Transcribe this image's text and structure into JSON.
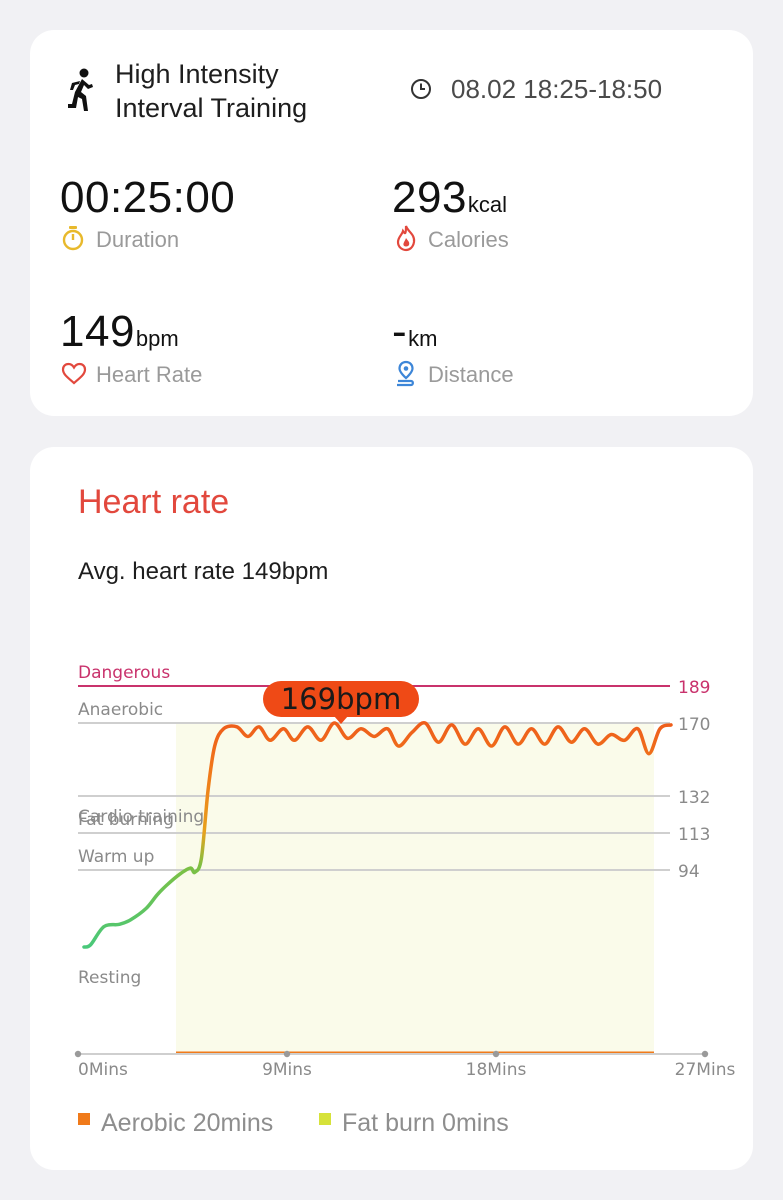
{
  "workout": {
    "title_line1": "High Intensity",
    "title_line2": "Interval Training",
    "time_range": "08.02 18:25-18:50"
  },
  "stats": {
    "duration": {
      "value": "00:25:00",
      "label": "Duration"
    },
    "calories": {
      "value": "293",
      "unit": "kcal",
      "label": "Calories"
    },
    "heart_rate": {
      "value": "149",
      "unit": "bpm",
      "label": "Heart Rate"
    },
    "distance": {
      "value": "-",
      "unit": "km",
      "label": "Distance"
    }
  },
  "heart_rate_card": {
    "title": "Heart rate",
    "average": "Avg. heart rate 149bpm",
    "tooltip": "169bpm",
    "legend": [
      {
        "label": "Aerobic 20mins",
        "color": "#f07a1a"
      },
      {
        "label": "Fat burn 0mins",
        "color": "#d6e23a"
      }
    ]
  },
  "chart_data": {
    "type": "line",
    "x_ticks": [
      "0Mins",
      "9Mins",
      "18Mins",
      "27Mins"
    ],
    "xlim": [
      0,
      27
    ],
    "zones": [
      {
        "name": "Dangerous",
        "lower": 189
      },
      {
        "name": "Anaerobic",
        "lower": 170
      },
      {
        "name": "Cardio training",
        "lower": 132
      },
      {
        "name": "Fat burning",
        "lower": 113
      },
      {
        "name": "Warm up",
        "lower": 94
      },
      {
        "name": "Resting",
        "lower": null
      }
    ],
    "y_ticks": [
      "189",
      "170",
      "132",
      "113",
      "94"
    ],
    "tooltip_value": 169,
    "series": [
      {
        "x": [
          0,
          0.3,
          0.9,
          1.6,
          2.1,
          2.8,
          3.3,
          3.7,
          4.3,
          4.8,
          5.0,
          5.3,
          5.6,
          5.9,
          6.3,
          6.9,
          7.4,
          7.9,
          8.4,
          9.0,
          9.5,
          10.1,
          10.7,
          11.3,
          11.9,
          12.5,
          13.1,
          13.7,
          14.2,
          14.8,
          15.4,
          16.0,
          16.6,
          17.2,
          17.8,
          18.4,
          19.0,
          19.6,
          20.2,
          20.8,
          21.4,
          22.0,
          22.6,
          23.2,
          23.8,
          24.4,
          25.0,
          25.5,
          26.0,
          26.5
        ],
        "y": [
          60,
          61,
          69,
          70,
          72,
          77,
          83,
          87,
          92,
          95,
          93,
          100,
          135,
          158,
          167,
          168,
          163,
          168,
          161,
          167,
          161,
          168,
          161,
          170,
          162,
          167,
          163,
          167,
          158,
          165,
          170,
          160,
          169,
          159,
          167,
          158,
          168,
          159,
          167,
          159,
          168,
          160,
          167,
          159,
          164,
          161,
          167,
          154,
          167,
          169
        ]
      }
    ]
  }
}
